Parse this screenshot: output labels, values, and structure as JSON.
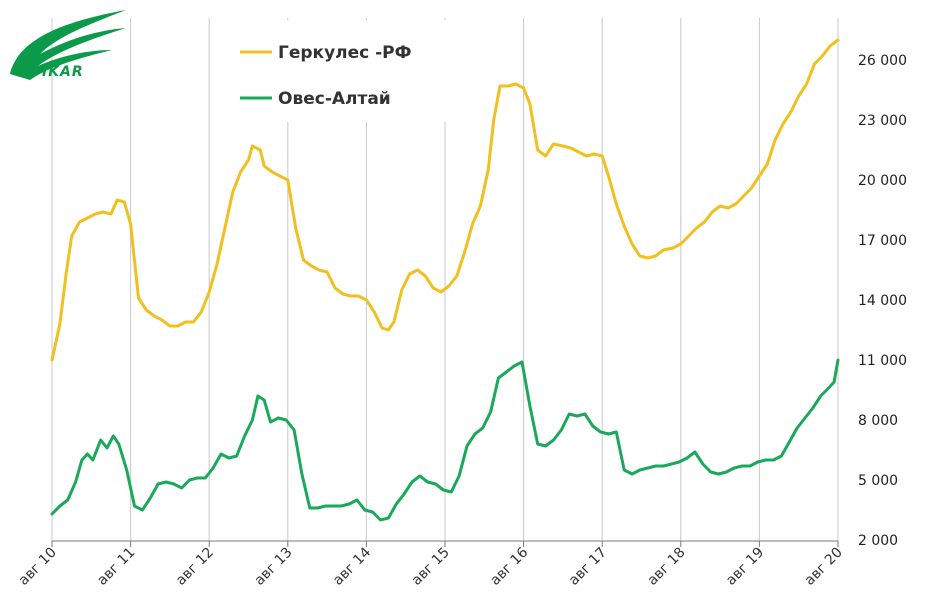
{
  "logo": {
    "text": "IKAR",
    "color": "#0a9a4a"
  },
  "chart_data": {
    "type": "line",
    "x_ticks": [
      "авг 10",
      "авг 11",
      "авг 12",
      "авг 13",
      "авг 14",
      "авг 15",
      "авг 16",
      "авг 17",
      "авг 18",
      "авг 19",
      "авг 20"
    ],
    "y_ticks": [
      "2 000",
      "5 000",
      "8 000",
      "11 000",
      "14 000",
      "17 000",
      "20 000",
      "23 000",
      "26 000"
    ],
    "ylim": [
      2000,
      26000
    ],
    "xlim": [
      0,
      10
    ],
    "grid": "vertical",
    "legend_position": "top-left",
    "series": [
      {
        "name": "Геркулес -РФ",
        "color": "#f0c020",
        "points": [
          [
            0.0,
            11000
          ],
          [
            0.1,
            12800
          ],
          [
            0.18,
            15300
          ],
          [
            0.25,
            17200
          ],
          [
            0.35,
            17900
          ],
          [
            0.45,
            18100
          ],
          [
            0.55,
            18300
          ],
          [
            0.65,
            18400
          ],
          [
            0.75,
            18300
          ],
          [
            0.83,
            19000
          ],
          [
            0.92,
            18900
          ],
          [
            1.0,
            17800
          ],
          [
            1.1,
            14100
          ],
          [
            1.2,
            13500
          ],
          [
            1.3,
            13200
          ],
          [
            1.4,
            13000
          ],
          [
            1.5,
            12700
          ],
          [
            1.6,
            12700
          ],
          [
            1.7,
            12900
          ],
          [
            1.8,
            12900
          ],
          [
            1.9,
            13400
          ],
          [
            2.0,
            14400
          ],
          [
            2.1,
            15800
          ],
          [
            2.2,
            17600
          ],
          [
            2.3,
            19400
          ],
          [
            2.4,
            20400
          ],
          [
            2.5,
            21000
          ],
          [
            2.55,
            21700
          ],
          [
            2.65,
            21500
          ],
          [
            2.7,
            20700
          ],
          [
            2.8,
            20400
          ],
          [
            2.9,
            20200
          ],
          [
            3.0,
            20000
          ],
          [
            3.1,
            17600
          ],
          [
            3.2,
            16000
          ],
          [
            3.3,
            15700
          ],
          [
            3.4,
            15500
          ],
          [
            3.5,
            15400
          ],
          [
            3.6,
            14600
          ],
          [
            3.7,
            14300
          ],
          [
            3.8,
            14200
          ],
          [
            3.9,
            14200
          ],
          [
            4.0,
            14000
          ],
          [
            4.1,
            13400
          ],
          [
            4.2,
            12600
          ],
          [
            4.28,
            12500
          ],
          [
            4.35,
            12900
          ],
          [
            4.45,
            14500
          ],
          [
            4.55,
            15300
          ],
          [
            4.65,
            15500
          ],
          [
            4.75,
            15200
          ],
          [
            4.85,
            14600
          ],
          [
            4.95,
            14400
          ],
          [
            5.05,
            14700
          ],
          [
            5.15,
            15200
          ],
          [
            5.25,
            16400
          ],
          [
            5.35,
            17800
          ],
          [
            5.45,
            18700
          ],
          [
            5.55,
            20500
          ],
          [
            5.62,
            23000
          ],
          [
            5.7,
            24700
          ],
          [
            5.8,
            24700
          ],
          [
            5.9,
            24800
          ],
          [
            6.0,
            24600
          ],
          [
            6.08,
            23800
          ],
          [
            6.18,
            21500
          ],
          [
            6.28,
            21200
          ],
          [
            6.38,
            21800
          ],
          [
            6.5,
            21700
          ],
          [
            6.6,
            21600
          ],
          [
            6.7,
            21400
          ],
          [
            6.8,
            21200
          ],
          [
            6.9,
            21300
          ],
          [
            7.0,
            21200
          ],
          [
            7.08,
            20200
          ],
          [
            7.18,
            18800
          ],
          [
            7.28,
            17700
          ],
          [
            7.38,
            16800
          ],
          [
            7.48,
            16200
          ],
          [
            7.58,
            16100
          ],
          [
            7.68,
            16200
          ],
          [
            7.78,
            16500
          ],
          [
            7.9,
            16600
          ],
          [
            8.0,
            16800
          ],
          [
            8.1,
            17200
          ],
          [
            8.2,
            17600
          ],
          [
            8.3,
            17900
          ],
          [
            8.4,
            18400
          ],
          [
            8.5,
            18700
          ],
          [
            8.6,
            18600
          ],
          [
            8.7,
            18800
          ],
          [
            8.8,
            19200
          ],
          [
            8.9,
            19600
          ],
          [
            9.0,
            20200
          ],
          [
            9.1,
            20800
          ],
          [
            9.2,
            22000
          ],
          [
            9.3,
            22800
          ],
          [
            9.4,
            23400
          ],
          [
            9.5,
            24200
          ],
          [
            9.6,
            24800
          ],
          [
            9.7,
            25800
          ],
          [
            9.8,
            26200
          ],
          [
            9.9,
            26700
          ],
          [
            10.0,
            27000
          ]
        ]
      },
      {
        "name": "Овес-Алтай",
        "color": "#1aa85a",
        "points": [
          [
            0.0,
            3300
          ],
          [
            0.1,
            3700
          ],
          [
            0.2,
            4000
          ],
          [
            0.3,
            4900
          ],
          [
            0.38,
            6000
          ],
          [
            0.45,
            6300
          ],
          [
            0.52,
            6000
          ],
          [
            0.62,
            7000
          ],
          [
            0.7,
            6600
          ],
          [
            0.78,
            7200
          ],
          [
            0.85,
            6800
          ],
          [
            0.95,
            5500
          ],
          [
            1.05,
            3700
          ],
          [
            1.15,
            3500
          ],
          [
            1.25,
            4100
          ],
          [
            1.35,
            4800
          ],
          [
            1.45,
            4900
          ],
          [
            1.55,
            4800
          ],
          [
            1.65,
            4600
          ],
          [
            1.75,
            5000
          ],
          [
            1.85,
            5100
          ],
          [
            1.95,
            5100
          ],
          [
            2.05,
            5600
          ],
          [
            2.15,
            6300
          ],
          [
            2.25,
            6100
          ],
          [
            2.35,
            6200
          ],
          [
            2.45,
            7200
          ],
          [
            2.55,
            8000
          ],
          [
            2.62,
            9200
          ],
          [
            2.7,
            9000
          ],
          [
            2.78,
            7900
          ],
          [
            2.88,
            8100
          ],
          [
            2.98,
            8000
          ],
          [
            3.08,
            7500
          ],
          [
            3.18,
            5300
          ],
          [
            3.28,
            3600
          ],
          [
            3.38,
            3600
          ],
          [
            3.48,
            3700
          ],
          [
            3.58,
            3700
          ],
          [
            3.68,
            3700
          ],
          [
            3.78,
            3800
          ],
          [
            3.88,
            4000
          ],
          [
            3.98,
            3500
          ],
          [
            4.08,
            3400
          ],
          [
            4.18,
            3000
          ],
          [
            4.28,
            3100
          ],
          [
            4.38,
            3800
          ],
          [
            4.48,
            4300
          ],
          [
            4.58,
            4900
          ],
          [
            4.68,
            5200
          ],
          [
            4.78,
            4900
          ],
          [
            4.88,
            4800
          ],
          [
            4.98,
            4500
          ],
          [
            5.08,
            4400
          ],
          [
            5.18,
            5200
          ],
          [
            5.28,
            6700
          ],
          [
            5.38,
            7300
          ],
          [
            5.48,
            7600
          ],
          [
            5.58,
            8400
          ],
          [
            5.68,
            10100
          ],
          [
            5.78,
            10400
          ],
          [
            5.88,
            10700
          ],
          [
            5.98,
            10900
          ],
          [
            6.08,
            8700
          ],
          [
            6.18,
            6800
          ],
          [
            6.28,
            6700
          ],
          [
            6.38,
            7000
          ],
          [
            6.48,
            7500
          ],
          [
            6.58,
            8300
          ],
          [
            6.68,
            8200
          ],
          [
            6.78,
            8300
          ],
          [
            6.88,
            7700
          ],
          [
            6.98,
            7400
          ],
          [
            7.08,
            7300
          ],
          [
            7.18,
            7400
          ],
          [
            7.28,
            5500
          ],
          [
            7.38,
            5300
          ],
          [
            7.48,
            5500
          ],
          [
            7.58,
            5600
          ],
          [
            7.68,
            5700
          ],
          [
            7.78,
            5700
          ],
          [
            7.88,
            5800
          ],
          [
            7.98,
            5900
          ],
          [
            8.08,
            6100
          ],
          [
            8.18,
            6400
          ],
          [
            8.28,
            5800
          ],
          [
            8.38,
            5400
          ],
          [
            8.48,
            5300
          ],
          [
            8.58,
            5400
          ],
          [
            8.68,
            5600
          ],
          [
            8.78,
            5700
          ],
          [
            8.88,
            5700
          ],
          [
            8.98,
            5900
          ],
          [
            9.08,
            6000
          ],
          [
            9.18,
            6000
          ],
          [
            9.28,
            6200
          ],
          [
            9.38,
            6900
          ],
          [
            9.48,
            7600
          ],
          [
            9.58,
            8100
          ],
          [
            9.68,
            8600
          ],
          [
            9.78,
            9200
          ],
          [
            9.88,
            9600
          ],
          [
            9.95,
            9900
          ],
          [
            10.0,
            11000
          ]
        ]
      }
    ]
  }
}
